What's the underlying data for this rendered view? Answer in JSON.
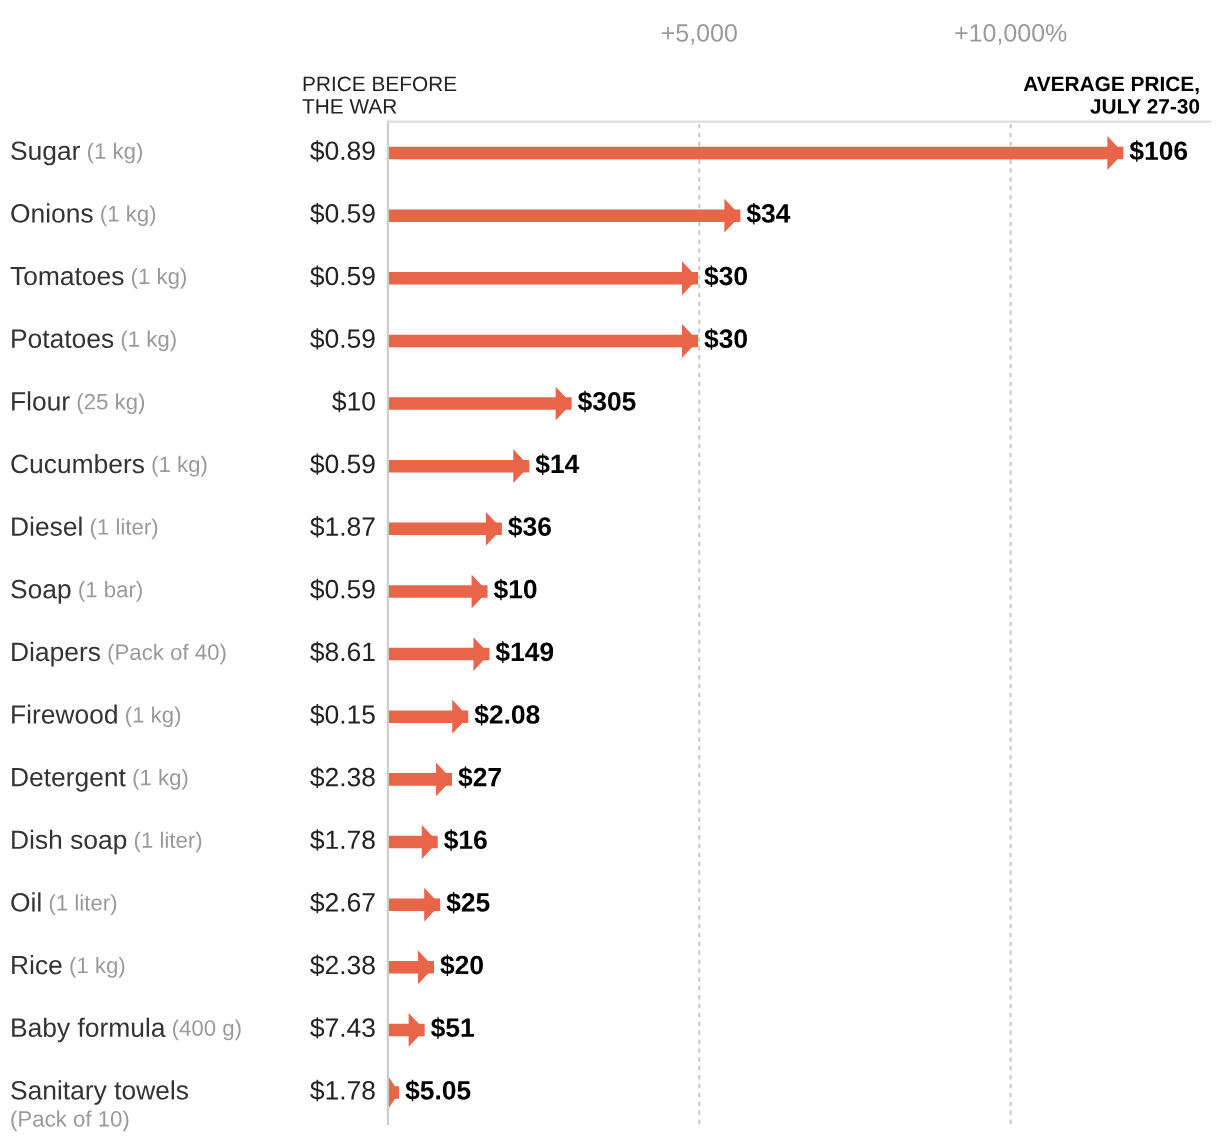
{
  "chart_data": {
    "type": "bar",
    "orientation": "horizontal",
    "categories": [
      "Sugar (1 kg)",
      "Onions (1 kg)",
      "Tomatoes (1 kg)",
      "Potatoes (1 kg)",
      "Flour (25 kg)",
      "Cucumbers (1 kg)",
      "Diesel (1 liter)",
      "Soap (1 bar)",
      "Diapers (Pack of 40)",
      "Firewood (1 kg)",
      "Detergent (1 kg)",
      "Dish soap (1 liter)",
      "Oil (1 liter)",
      "Rice (1 kg)",
      "Baby formula (400 g)",
      "Sanitary towels\n(Pack of 10)"
    ],
    "values": [
      11810,
      5660,
      4980,
      4980,
      2950,
      2270,
      1830,
      1600,
      1630,
      1290,
      1030,
      800,
      840,
      740,
      590,
      180
    ],
    "color": "#e8654a",
    "xlim": [
      0,
      13200
    ],
    "xticks": [
      {
        "value": 5000,
        "label": "+5,000"
      },
      {
        "value": 10000,
        "label": "+10,000%"
      }
    ],
    "grid": "x",
    "annotations": [
      "PRICE BEFORE\nTHE WAR",
      "AVERAGE PRICE,\nJULY 27-30",
      "$0.89",
      "$0.59",
      "$0.59",
      "$0.59",
      "$10",
      "$0.59",
      "$1.87",
      "$0.59",
      "$8.61",
      "$0.15",
      "$2.38",
      "$1.78",
      "$2.67",
      "$2.38",
      "$7.43",
      "$1.78",
      {
        "text": "$106",
        "x": 11810,
        "y": "Sugar (1 kg)"
      },
      {
        "text": "$34",
        "x": 5660,
        "y": "Onions (1 kg)"
      },
      {
        "text": "$30",
        "x": 4980,
        "y": "Tomatoes (1 kg)"
      },
      {
        "text": "$30",
        "x": 4980,
        "y": "Potatoes (1 kg)"
      },
      {
        "text": "$305",
        "x": 2950,
        "y": "Flour (25 kg)"
      },
      {
        "text": "$14",
        "x": 2270,
        "y": "Cucumbers (1 kg)"
      },
      {
        "text": "$36",
        "x": 1830,
        "y": "Diesel (1 liter)"
      },
      {
        "text": "$10",
        "x": 1600,
        "y": "Soap (1 bar)"
      },
      {
        "text": "$149",
        "x": 1630,
        "y": "Diapers (Pack of 40)"
      },
      {
        "text": "$2.08",
        "x": 1290,
        "y": "Firewood (1 kg)"
      },
      {
        "text": "$27",
        "x": 1030,
        "y": "Detergent (1 kg)"
      },
      {
        "text": "$16",
        "x": 800,
        "y": "Dish soap (1 liter)"
      },
      {
        "text": "$25",
        "x": 840,
        "y": "Oil (1 liter)"
      },
      {
        "text": "$20",
        "x": 740,
        "y": "Rice (1 kg)"
      },
      {
        "text": "$51",
        "x": 590,
        "y": "Baby formula (400 g)"
      },
      {
        "text": "$5.05",
        "x": 180,
        "y": "Sanitary towels\n(Pack of 10)"
      }
    ]
  }
}
